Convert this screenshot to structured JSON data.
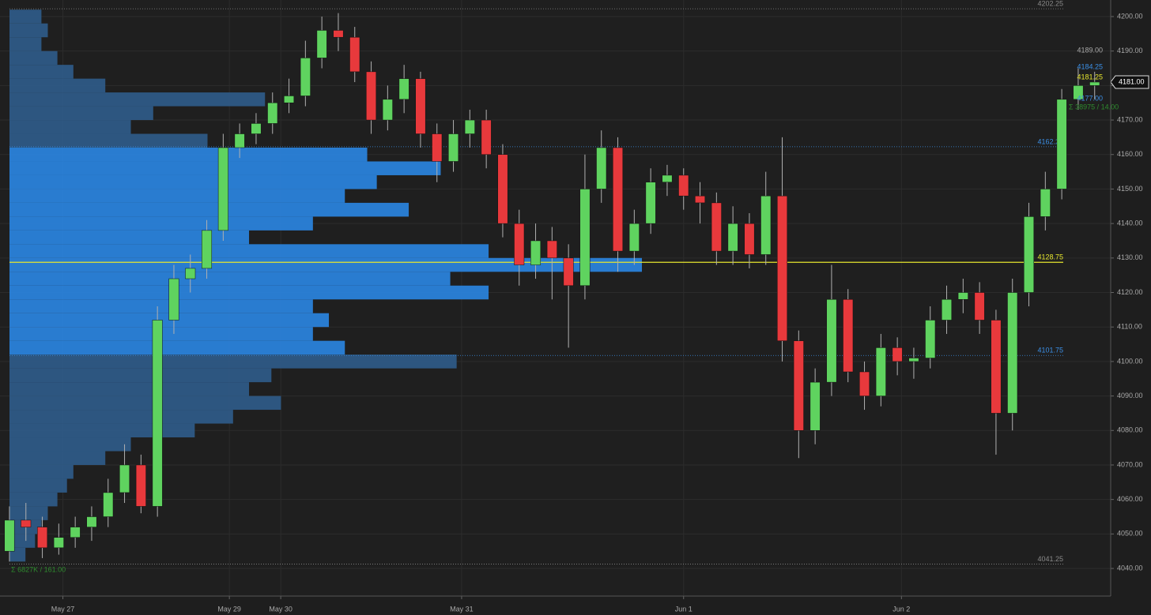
{
  "chart_data": {
    "type": "candlestick",
    "xlim": [
      -2.3,
      267.9
    ],
    "xticks": [
      {
        "value": 13,
        "label": "May 27"
      },
      {
        "value": 53.5,
        "label": "May 29"
      },
      {
        "value": 66,
        "label": "May 30"
      },
      {
        "value": 110,
        "label": "May 31"
      },
      {
        "value": 164,
        "label": "Jun 1"
      },
      {
        "value": 217,
        "label": "Jun 2"
      }
    ],
    "ylim": [
      4032,
      4204.8
    ],
    "yticks": [
      {
        "value": 4040,
        "label": "4040.00"
      },
      {
        "value": 4050,
        "label": "4050.00"
      },
      {
        "value": 4060,
        "label": "4060.00"
      },
      {
        "value": 4070,
        "label": "4070.00"
      },
      {
        "value": 4080,
        "label": "4080.00"
      },
      {
        "value": 4090,
        "label": "4090.00"
      },
      {
        "value": 4100,
        "label": "4100.00"
      },
      {
        "value": 4110,
        "label": "4110.00"
      },
      {
        "value": 4120,
        "label": "4120.00"
      },
      {
        "value": 4130,
        "label": "4130.00"
      },
      {
        "value": 4140,
        "label": "4140.00"
      },
      {
        "value": 4150,
        "label": "4150.00"
      },
      {
        "value": 4160,
        "label": "4160.00"
      },
      {
        "value": 4170,
        "label": "4170.00"
      },
      {
        "value": 4180,
        "label": "4180.00"
      },
      {
        "value": 4190,
        "label": "4190.00"
      },
      {
        "value": 4200,
        "label": "4200.00"
      }
    ],
    "grid": true,
    "up_color": "#5fd35f",
    "down_color": "#e8393c",
    "x": [
      0,
      4,
      8,
      12,
      16,
      20,
      24,
      28,
      32,
      36,
      40,
      44,
      48,
      52,
      56,
      60,
      64,
      68,
      72,
      76,
      80,
      84,
      88,
      92,
      96,
      100,
      104,
      108,
      112,
      116,
      120,
      124,
      128,
      132,
      136,
      140,
      144,
      148,
      152,
      156,
      160,
      164,
      168,
      172,
      176,
      180,
      184,
      188,
      192,
      196,
      200,
      204,
      208,
      212,
      216,
      220,
      224,
      228,
      232,
      236,
      240,
      244,
      248,
      252,
      256,
      260,
      264
    ],
    "open": [
      4045,
      4054,
      4052,
      4046,
      4049,
      4052,
      4055,
      4062,
      4070,
      4058,
      4112,
      4124,
      4127,
      4138,
      4162,
      4166,
      4169,
      4175,
      4177,
      4188,
      4196,
      4194,
      4184,
      4170,
      4176,
      4182,
      4166,
      4158,
      4166,
      4170,
      4160,
      4140,
      4128,
      4135,
      4130,
      4122,
      4150,
      4162,
      4132,
      4140,
      4152,
      4154,
      4148,
      4146,
      4132,
      4140,
      4131,
      4148,
      4106,
      4080,
      4094,
      4118,
      4097,
      4090,
      4104,
      4100,
      4101,
      4112,
      4118,
      4120,
      4112,
      4085,
      4120,
      4142,
      4150,
      4176,
      4180
    ],
    "high": [
      4058,
      4059,
      4055,
      4053,
      4055,
      4058,
      4066,
      4076,
      4073,
      4116,
      4128,
      4131,
      4141,
      4166,
      4169,
      4172,
      4178,
      4182,
      4193,
      4200,
      4201,
      4197,
      4187,
      4180,
      4186,
      4184,
      4169,
      4170,
      4173,
      4173,
      4163,
      4144,
      4140,
      4139,
      4134,
      4160,
      4167,
      4165,
      4144,
      4156,
      4157,
      4156,
      4152,
      4149,
      4145,
      4143,
      4155,
      4165,
      4109,
      4098,
      4128,
      4121,
      4100,
      4108,
      4107,
      4104,
      4116,
      4122,
      4124,
      4123,
      4115,
      4124,
      4146,
      4155,
      4179,
      4185,
      4184
    ],
    "low": [
      4042,
      4048,
      4043,
      4044,
      4046,
      4048,
      4052,
      4059,
      4056,
      4055,
      4108,
      4120,
      4124,
      4135,
      4159,
      4163,
      4166,
      4172,
      4174,
      4185,
      4190,
      4181,
      4166,
      4167,
      4172,
      4162,
      4152,
      4155,
      4162,
      4156,
      4136,
      4122,
      4124,
      4118,
      4104,
      4118,
      4146,
      4126,
      4128,
      4137,
      4148,
      4144,
      4140,
      4128,
      4128,
      4127,
      4128,
      4100,
      4072,
      4076,
      4090,
      4094,
      4086,
      4087,
      4096,
      4095,
      4098,
      4108,
      4114,
      4108,
      4073,
      4080,
      4116,
      4138,
      4147,
      4173,
      4176
    ],
    "close": [
      4054,
      4052,
      4046,
      4049,
      4052,
      4055,
      4062,
      4070,
      4058,
      4112,
      4124,
      4127,
      4138,
      4162,
      4166,
      4169,
      4175,
      4177,
      4188,
      4196,
      4194,
      4184,
      4170,
      4176,
      4182,
      4166,
      4158,
      4166,
      4170,
      4160,
      4140,
      4128,
      4135,
      4130,
      4122,
      4150,
      4162,
      4132,
      4140,
      4152,
      4154,
      4148,
      4146,
      4132,
      4140,
      4131,
      4148,
      4106,
      4080,
      4094,
      4118,
      4097,
      4090,
      4104,
      4100,
      4101,
      4112,
      4118,
      4120,
      4112,
      4085,
      4120,
      4142,
      4150,
      4176,
      4180,
      4181
    ],
    "profile": {
      "inside_color": "#2a82da",
      "outside_color": "#2e5a86",
      "prices": [
        4044,
        4048,
        4052,
        4056,
        4060,
        4064,
        4068,
        4072,
        4076,
        4080,
        4084,
        4088,
        4092,
        4096,
        4100,
        4104,
        4108,
        4112,
        4116,
        4120,
        4124,
        4128,
        4132,
        4136,
        4140,
        4144,
        4148,
        4152,
        4156,
        4160,
        4164,
        4168,
        4172,
        4176,
        4180,
        4184,
        4188,
        4192,
        4196,
        4200
      ],
      "volumes": [
        5,
        8,
        10,
        12,
        15,
        18,
        20,
        30,
        38,
        58,
        70,
        85,
        75,
        82,
        140,
        105,
        95,
        100,
        95,
        150,
        138,
        198,
        150,
        75,
        95,
        125,
        105,
        115,
        135,
        112,
        62,
        38,
        45,
        80,
        30,
        20,
        15,
        10,
        12,
        10
      ]
    },
    "levels": [
      {
        "value": 4202.25,
        "label": "4202.25",
        "color": "#8a8a8a"
      },
      {
        "value": 4162.25,
        "label": "4162.25",
        "color": "#3b8fe6"
      },
      {
        "value": 4128.75,
        "label": "4128.75",
        "color": "#e6e62e"
      },
      {
        "value": 4101.75,
        "label": "4101.75",
        "color": "#3b8fe6"
      },
      {
        "value": 4041.25,
        "label": "4041.25",
        "color": "#8a8a8a"
      }
    ],
    "last_price": {
      "value": 4181,
      "label": "4181.00"
    },
    "annotations": [
      "Σ 6827K / 161.00",
      "Σ 38975 / 14.00",
      "4189.00",
      "4184.25",
      "4181.25",
      "4177.00"
    ]
  }
}
